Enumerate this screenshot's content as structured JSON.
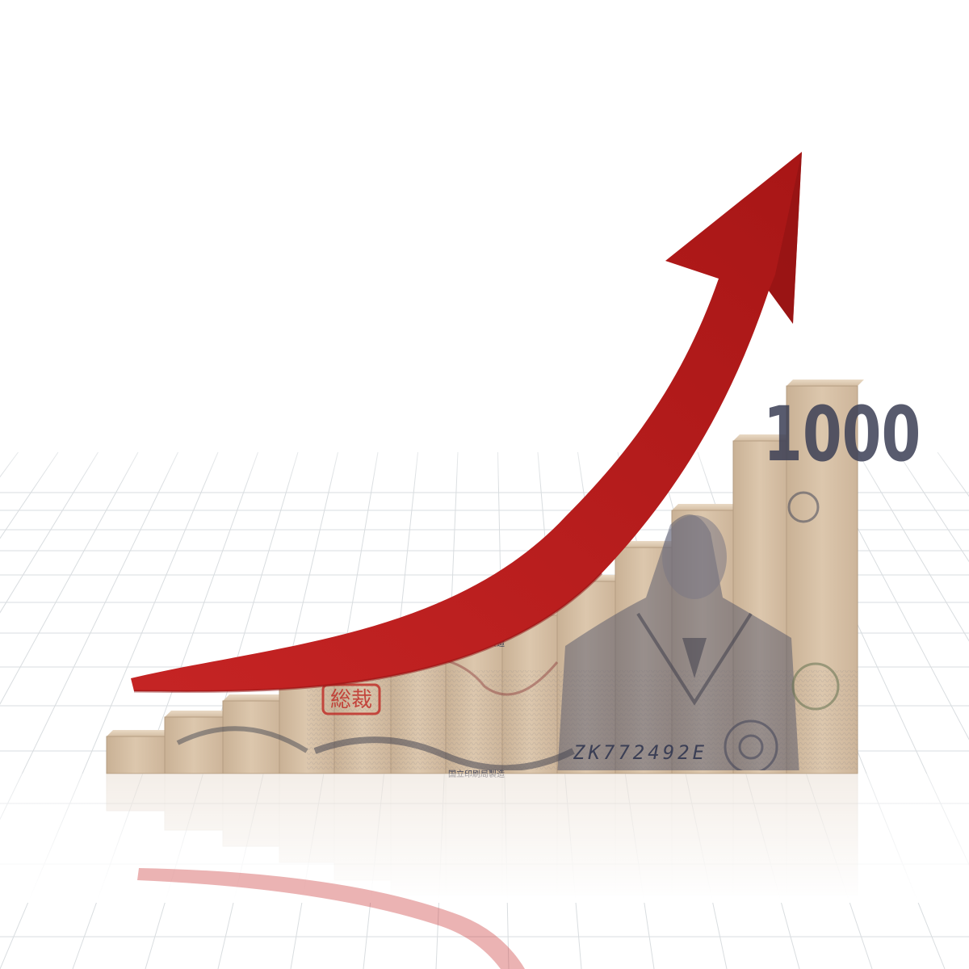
{
  "scene": {
    "description_label": "",
    "colors": {
      "background": "#ffffff",
      "grid": "#d9dde0",
      "arrow": "#b51c1c",
      "arrow_dark": "#8e1212",
      "bill_paper": "#d9c3a8",
      "bill_ink": "#3b3f55",
      "bill_green": "#5a6b4a",
      "seal_red": "#c0302a"
    },
    "bills": {
      "serial_number": "ZK772492E",
      "bank_text": "国立印刷局製造",
      "denomination": "1000",
      "seal_text": "総裁"
    },
    "icons": {
      "arrow": "growth-arrow-icon",
      "portrait": "portrait-icon",
      "seal": "seal-icon"
    }
  }
}
